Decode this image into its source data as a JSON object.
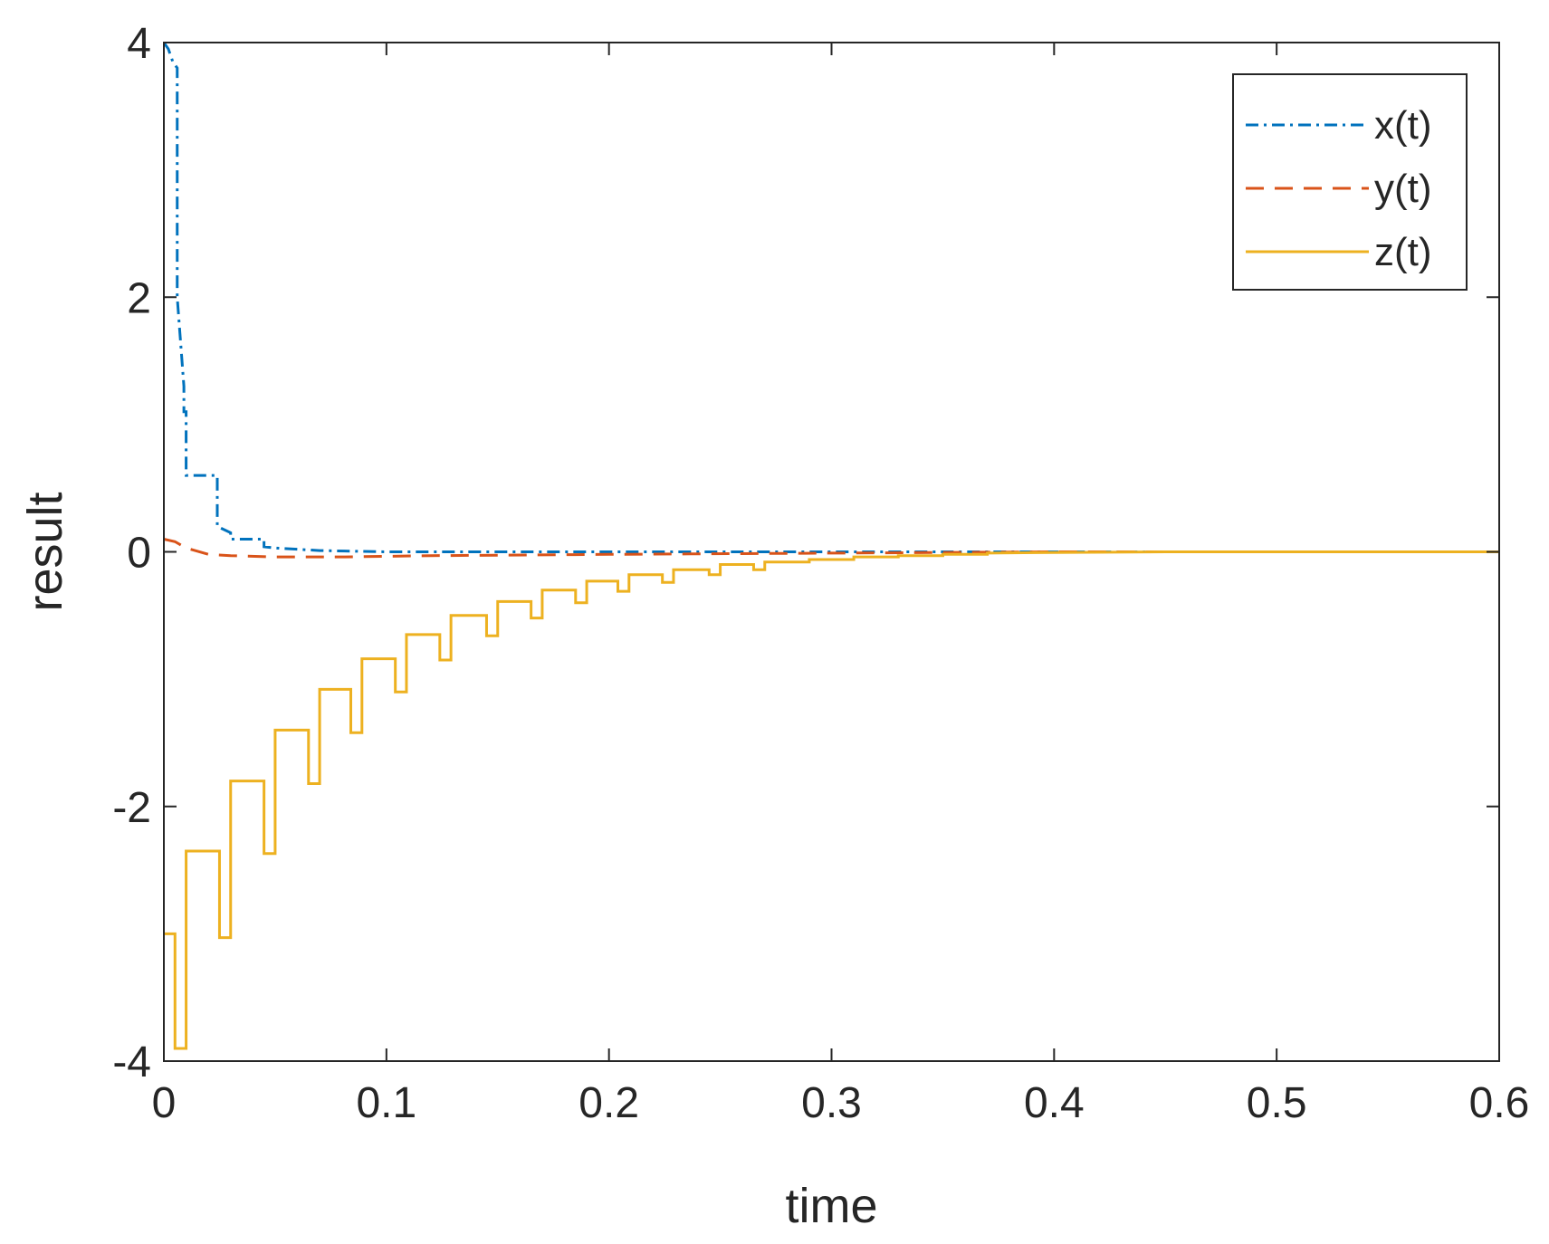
{
  "chart_data": {
    "type": "line",
    "title": "",
    "xlabel": "time",
    "ylabel": "result",
    "xlim": [
      0,
      0.6
    ],
    "ylim": [
      -4,
      4
    ],
    "xticks": [
      0,
      0.1,
      0.2,
      0.3,
      0.4,
      0.5,
      0.6
    ],
    "xtick_labels": [
      "0",
      "0.1",
      "0.2",
      "0.3",
      "0.4",
      "0.5",
      "0.6"
    ],
    "yticks": [
      -4,
      -2,
      0,
      2,
      4
    ],
    "ytick_labels": [
      "-4",
      "-2",
      "0",
      "2",
      "4"
    ],
    "grid": false,
    "legend_position": "top-right",
    "series": [
      {
        "name": "x(t)",
        "color": "#0072BD",
        "line_style": "dash-dot",
        "x": [
          0,
          0.002,
          0.004,
          0.006,
          0.006,
          0.009,
          0.009,
          0.01,
          0.01,
          0.024,
          0.024,
          0.03,
          0.03,
          0.045,
          0.045,
          0.05,
          0.06,
          0.07,
          0.1,
          0.2,
          0.3,
          0.4,
          0.5,
          0.6
        ],
        "y": [
          4,
          3.95,
          3.85,
          3.8,
          2.0,
          1.3,
          1.1,
          1.1,
          0.6,
          0.6,
          0.2,
          0.15,
          0.1,
          0.1,
          0.04,
          0.03,
          0.02,
          0.01,
          0,
          0,
          0,
          0,
          0,
          0
        ]
      },
      {
        "name": "y(t)",
        "color": "#D95319",
        "line_style": "dashed",
        "x": [
          0,
          0.005,
          0.01,
          0.02,
          0.03,
          0.05,
          0.08,
          0.12,
          0.2,
          0.3,
          0.4,
          0.5,
          0.6
        ],
        "y": [
          0.1,
          0.08,
          0.03,
          -0.02,
          -0.03,
          -0.04,
          -0.04,
          -0.03,
          -0.02,
          -0.01,
          0,
          0,
          0
        ]
      },
      {
        "name": "z(t)",
        "color": "#EDB120",
        "line_style": "solid",
        "x": [
          0,
          0.005,
          0.005,
          0.01,
          0.01,
          0.025,
          0.025,
          0.03,
          0.03,
          0.045,
          0.045,
          0.05,
          0.05,
          0.065,
          0.065,
          0.07,
          0.07,
          0.084,
          0.084,
          0.089,
          0.089,
          0.104,
          0.104,
          0.109,
          0.109,
          0.124,
          0.124,
          0.129,
          0.129,
          0.145,
          0.145,
          0.15,
          0.15,
          0.165,
          0.165,
          0.17,
          0.17,
          0.185,
          0.185,
          0.19,
          0.19,
          0.204,
          0.204,
          0.209,
          0.209,
          0.224,
          0.224,
          0.229,
          0.229,
          0.245,
          0.245,
          0.25,
          0.25,
          0.265,
          0.265,
          0.27,
          0.27,
          0.29,
          0.29,
          0.31,
          0.31,
          0.33,
          0.33,
          0.35,
          0.35,
          0.37,
          0.37,
          0.4,
          0.45,
          0.5,
          0.6
        ],
        "y": [
          -3.0,
          -3.0,
          -3.9,
          -3.9,
          -2.35,
          -2.35,
          -3.03,
          -3.03,
          -1.8,
          -1.8,
          -2.37,
          -2.37,
          -1.4,
          -1.4,
          -1.82,
          -1.82,
          -1.08,
          -1.08,
          -1.42,
          -1.42,
          -0.84,
          -0.84,
          -1.1,
          -1.1,
          -0.65,
          -0.65,
          -0.85,
          -0.85,
          -0.5,
          -0.5,
          -0.66,
          -0.66,
          -0.39,
          -0.39,
          -0.52,
          -0.52,
          -0.3,
          -0.3,
          -0.4,
          -0.4,
          -0.23,
          -0.23,
          -0.31,
          -0.31,
          -0.18,
          -0.18,
          -0.24,
          -0.24,
          -0.14,
          -0.14,
          -0.18,
          -0.18,
          -0.1,
          -0.1,
          -0.14,
          -0.14,
          -0.08,
          -0.08,
          -0.06,
          -0.06,
          -0.04,
          -0.04,
          -0.03,
          -0.03,
          -0.02,
          -0.02,
          -0.01,
          -0.005,
          0,
          0,
          0
        ]
      }
    ]
  }
}
